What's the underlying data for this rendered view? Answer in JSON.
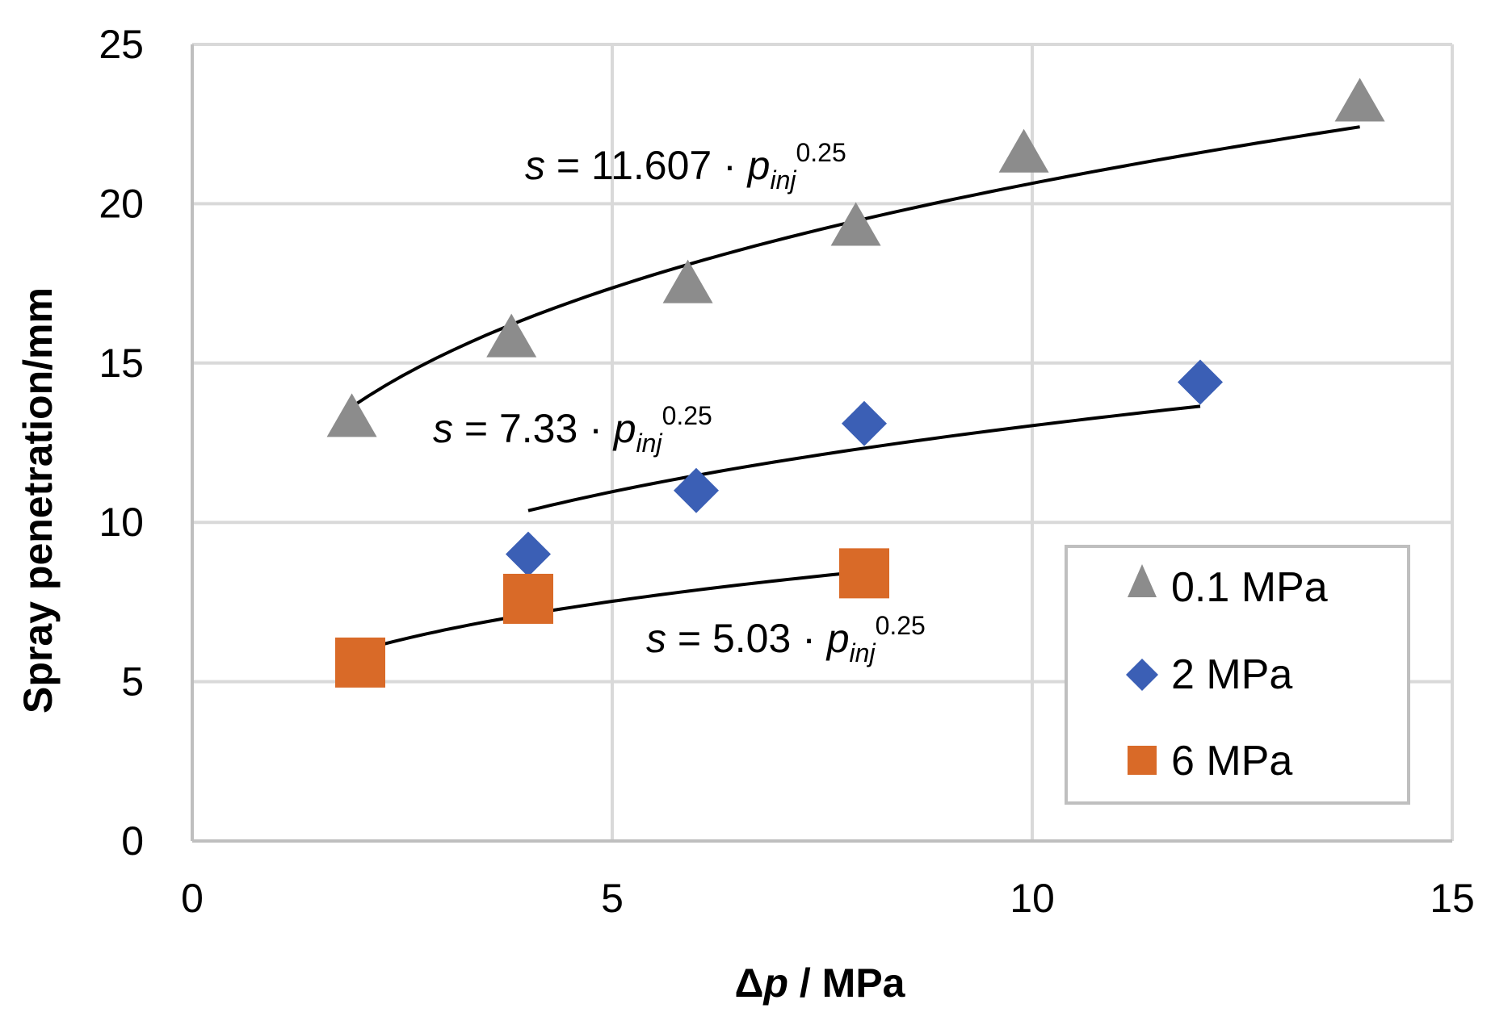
{
  "chart_data": {
    "type": "scatter",
    "title": "",
    "xlabel_symbol": "Δ",
    "xlabel_var": "p",
    "xlabel_rest": " / MPa",
    "ylabel": "Spray penetration/mm",
    "xlim": [
      0,
      15
    ],
    "ylim": [
      0,
      25
    ],
    "xticks": [
      0,
      5,
      10,
      15
    ],
    "yticks": [
      0,
      5,
      10,
      15,
      20,
      25
    ],
    "grid": true,
    "legend_position": "bottom-right",
    "series": [
      {
        "name": "0.1 MPa",
        "marker": "triangle",
        "color": "#8c8c8c",
        "x": [
          1.9,
          3.8,
          5.9,
          7.9,
          9.9,
          13.9
        ],
        "y": [
          13.2,
          15.7,
          17.4,
          19.2,
          21.5,
          23.1
        ],
        "fit": {
          "coef": 11.607,
          "exponent": 0.25,
          "x_range": [
            1.9,
            13.9
          ],
          "label": {
            "s": "s",
            "eq": " = 11.607 · ",
            "p": "p",
            "sub": "inj",
            "sup": "0.25"
          }
        }
      },
      {
        "name": "2 MPa",
        "marker": "diamond",
        "color": "#3b5fb5",
        "x": [
          4.0,
          6.0,
          8.0,
          12.0
        ],
        "y": [
          9.0,
          11.0,
          13.1,
          14.4
        ],
        "fit": {
          "coef": 7.33,
          "exponent": 0.25,
          "x_range": [
            4.0,
            12.0
          ],
          "label": {
            "s": "s",
            "eq": " = 7.33 · ",
            "p": "p",
            "sub": "inj",
            "sup": "0.25"
          }
        }
      },
      {
        "name": "6 MPa",
        "marker": "square",
        "color": "#d96a28",
        "x": [
          2.0,
          4.0,
          8.0
        ],
        "y": [
          5.6,
          7.6,
          8.4
        ],
        "fit": {
          "coef": 5.03,
          "exponent": 0.25,
          "x_range": [
            2.0,
            8.0
          ],
          "label": {
            "s": "s",
            "eq": " = 5.03 · ",
            "p": "p",
            "sub": "inj",
            "sup": "0.25"
          }
        }
      }
    ]
  }
}
